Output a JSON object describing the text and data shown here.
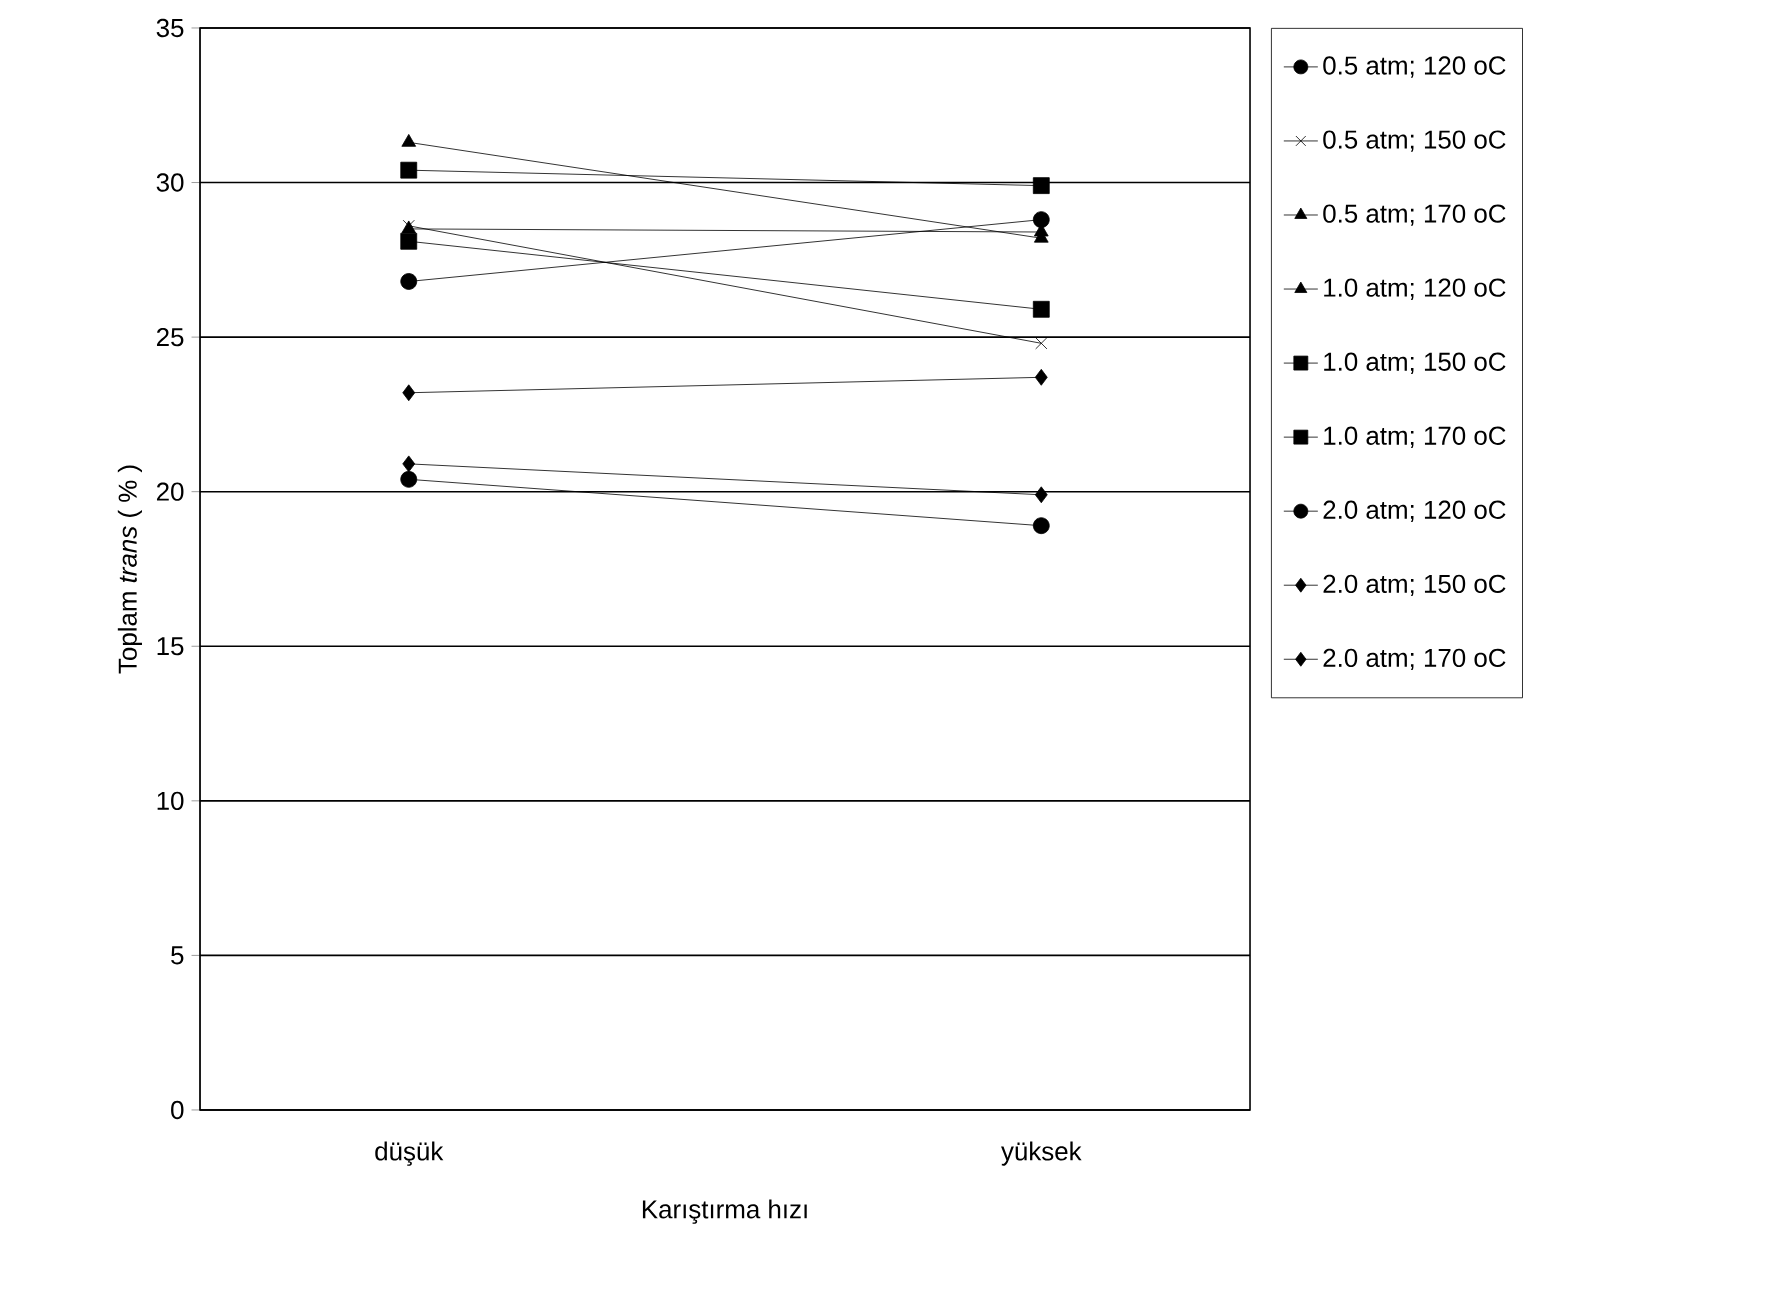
{
  "chart_data": {
    "type": "line",
    "categories": [
      "düşük",
      "yüksek"
    ],
    "xlabel": "Karıştırma hızı",
    "ylabel": "Toplam *trans* ( % )",
    "ylim": [
      0,
      35
    ],
    "yticks": [
      0,
      5,
      10,
      15,
      20,
      25,
      30,
      35
    ],
    "grid": "y",
    "legend": "right",
    "line_style": "solid",
    "series": [
      {
        "name": "0.5 atm; 120 oC",
        "color": "#000000",
        "marker": "circle",
        "values": [
          26.8,
          28.8
        ]
      },
      {
        "name": "0.5 atm; 150 oC",
        "color": "#000000",
        "marker": "cross",
        "values": [
          28.6,
          24.8
        ]
      },
      {
        "name": "0.5 atm; 170 oC",
        "color": "#000000",
        "marker": "triangle",
        "values": [
          31.3,
          28.2
        ]
      },
      {
        "name": "1.0 atm; 120 oC",
        "color": "#000000",
        "marker": "triangle",
        "values": [
          28.5,
          28.4
        ]
      },
      {
        "name": "1.0 atm; 150 oC",
        "color": "#000000",
        "marker": "square",
        "values": [
          28.1,
          25.9
        ]
      },
      {
        "name": "1.0 atm; 170 oC",
        "color": "#000000",
        "marker": "square",
        "values": [
          30.4,
          29.9
        ]
      },
      {
        "name": "2.0 atm; 120 oC",
        "color": "#000000",
        "marker": "circle",
        "values": [
          20.4,
          18.9
        ]
      },
      {
        "name": "2.0 atm; 150 oC",
        "color": "#000000",
        "marker": "diamond",
        "values": [
          20.9,
          19.9
        ]
      },
      {
        "name": "2.0 atm; 170 oC",
        "color": "#000000",
        "marker": "diamond",
        "values": [
          23.2,
          23.7
        ]
      }
    ]
  }
}
